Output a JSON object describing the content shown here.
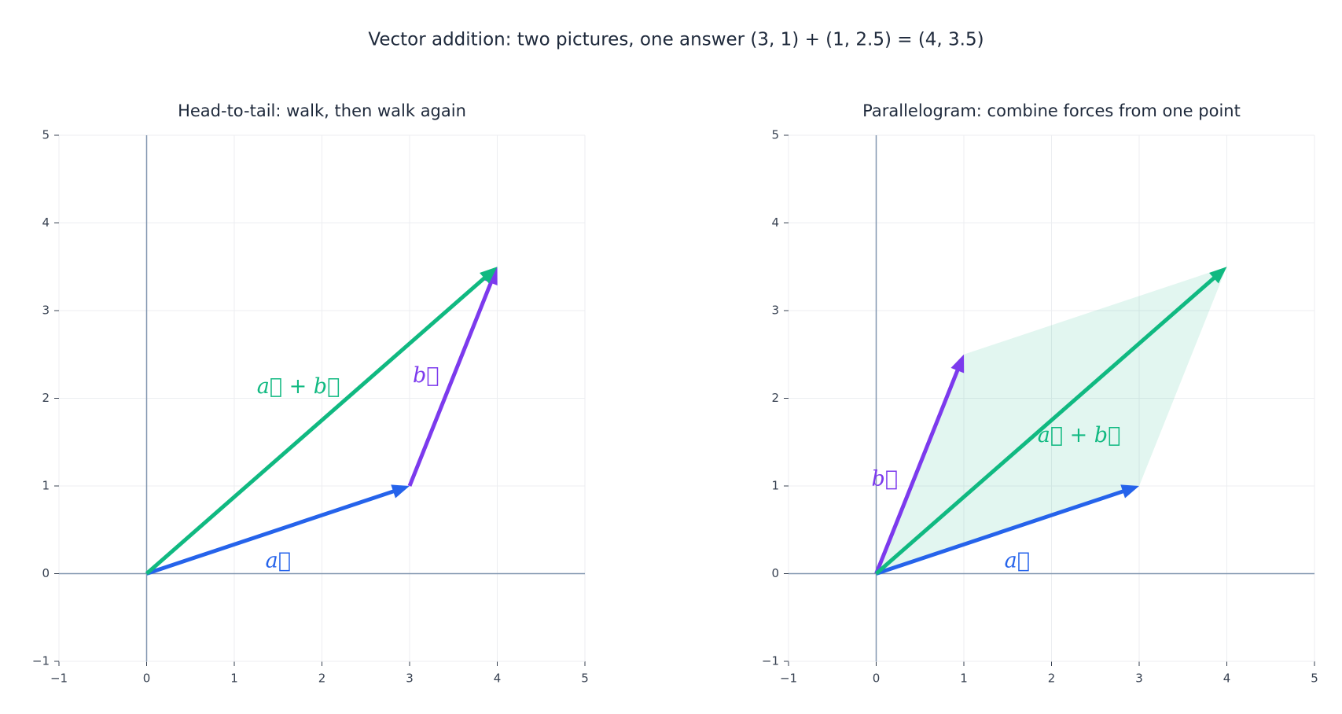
{
  "title": "Vector addition: two pictures, one answer  (3, 1) + (1, 2.5) = (4, 3.5)",
  "chart_data": [
    {
      "type": "vector",
      "title": "Head-to-tail: walk, then walk again",
      "xlim": [
        -1,
        5
      ],
      "ylim": [
        -1,
        5
      ],
      "xticks": [
        {
          "value": -1,
          "label": "−1"
        },
        0,
        1,
        2,
        3,
        4,
        5
      ],
      "yticks": [
        {
          "value": -1,
          "label": "−1"
        },
        0,
        1,
        2,
        3,
        4,
        5
      ],
      "grid": true,
      "parallelogram": false,
      "vectors": [
        {
          "name": "a⃗",
          "color": "#2563eb",
          "start": [
            0,
            0
          ],
          "end": [
            3,
            1
          ]
        },
        {
          "name": "b⃗",
          "color": "#7c3aed",
          "start": [
            3,
            1
          ],
          "end": [
            4,
            3.5
          ]
        },
        {
          "name": "a⃗ + b⃗",
          "color": "#10b981",
          "start": [
            0,
            0
          ],
          "end": [
            4,
            3.5
          ]
        }
      ]
    },
    {
      "type": "vector",
      "title": "Parallelogram: combine forces from one point",
      "xlim": [
        -1,
        5
      ],
      "ylim": [
        -1,
        5
      ],
      "xticks": [
        {
          "value": -1,
          "label": "−1"
        },
        0,
        1,
        2,
        3,
        4,
        5
      ],
      "yticks": [
        {
          "value": -1,
          "label": "−1"
        },
        0,
        1,
        2,
        3,
        4,
        5
      ],
      "grid": true,
      "parallelogram": true,
      "vectors": [
        {
          "name": "a⃗",
          "color": "#2563eb",
          "start": [
            0,
            0
          ],
          "end": [
            3,
            1
          ]
        },
        {
          "name": "b⃗",
          "color": "#7c3aed",
          "start": [
            0,
            0
          ],
          "end": [
            1,
            2.5
          ]
        },
        {
          "name": "a⃗ + b⃗",
          "color": "#10b981",
          "start": [
            0,
            0
          ],
          "end": [
            4,
            3.5
          ]
        }
      ]
    }
  ]
}
